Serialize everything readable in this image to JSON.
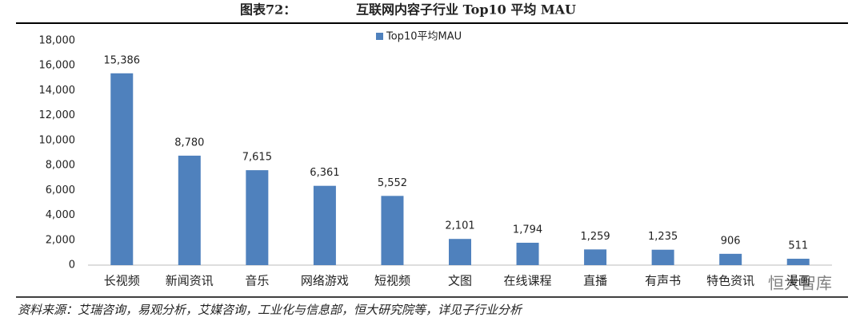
{
  "chart_data": {
    "type": "bar",
    "figure_label": "图表72：",
    "title": "互联网内容子行业 Top10 平均 MAU",
    "categories": [
      "长视频",
      "新闻资讯",
      "音乐",
      "网络游戏",
      "短视频",
      "文图",
      "在线课程",
      "直播",
      "有声书",
      "特色资讯",
      "漫画"
    ],
    "series": [
      {
        "name": "Top10平均MAU",
        "color": "#4f81bd",
        "values": [
          15386,
          8780,
          7615,
          6361,
          5552,
          2101,
          1794,
          1259,
          1235,
          906,
          511
        ],
        "value_labels": [
          "15,386",
          "8,780",
          "7,615",
          "6,361",
          "5,552",
          "2,101",
          "1,794",
          "1,259",
          "1,235",
          "906",
          "511"
        ]
      }
    ],
    "ylim": [
      0,
      18000
    ],
    "yticks": [
      0,
      {
        "value": 2000,
        "label": "2,000"
      },
      {
        "value": 4000,
        "label": "4,000"
      },
      {
        "value": 6000,
        "label": "6,000"
      },
      {
        "value": 8000,
        "label": "8,000"
      },
      {
        "value": 10000,
        "label": "10,000"
      },
      {
        "value": 12000,
        "label": "12,000"
      },
      {
        "value": 14000,
        "label": "14,000"
      },
      {
        "value": 16000,
        "label": "16,000"
      },
      {
        "value": 18000,
        "label": "18,000"
      }
    ],
    "grid": false,
    "legend": "top",
    "source": "资料来源：艾瑞咨询，易观分析，艾媒咨询，工业化与信息部，恒大研究院等，详见子行业分析",
    "watermark": "恒大智库"
  }
}
